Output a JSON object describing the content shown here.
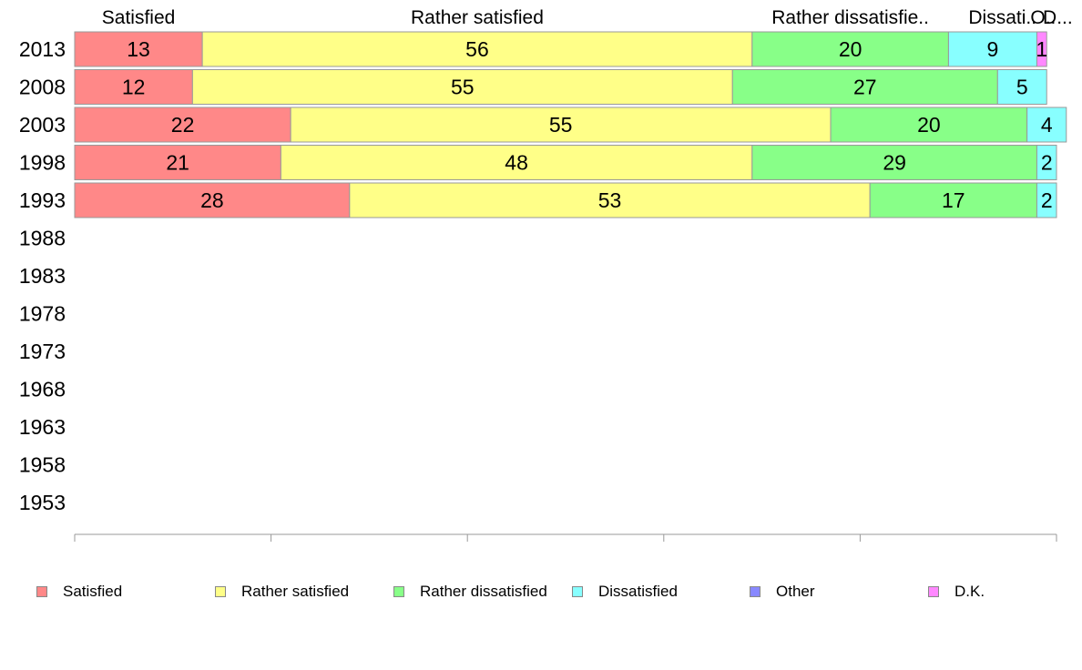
{
  "chart_data": {
    "type": "bar",
    "orientation": "horizontal",
    "stacked": true,
    "title": "",
    "xlabel": "",
    "ylabel": "",
    "xlim": [
      0,
      100
    ],
    "x_ticks": [
      0,
      20,
      40,
      60,
      80,
      100
    ],
    "categories": [
      "2013",
      "2008",
      "2003",
      "1998",
      "1993",
      "1988",
      "1983",
      "1978",
      "1973",
      "1968",
      "1963",
      "1958",
      "1953"
    ],
    "series": [
      {
        "name": "Satisfied",
        "color": "#ff8888",
        "values": [
          13,
          12,
          22,
          21,
          28,
          null,
          null,
          null,
          null,
          null,
          null,
          null,
          null
        ]
      },
      {
        "name": "Rather satisfied",
        "color": "#ffff88",
        "values": [
          56,
          55,
          55,
          48,
          53,
          null,
          null,
          null,
          null,
          null,
          null,
          null,
          null
        ]
      },
      {
        "name": "Rather dissatisfied",
        "color": "#88ff88",
        "values": [
          20,
          27,
          20,
          29,
          17,
          null,
          null,
          null,
          null,
          null,
          null,
          null,
          null
        ]
      },
      {
        "name": "Dissatisfied",
        "color": "#88ffff",
        "values": [
          9,
          5,
          4,
          2,
          2,
          null,
          null,
          null,
          null,
          null,
          null,
          null,
          null
        ]
      },
      {
        "name": "Other",
        "color": "#8888ff",
        "values": [
          0,
          0,
          0,
          0,
          0,
          null,
          null,
          null,
          null,
          null,
          null,
          null,
          null
        ]
      },
      {
        "name": "D.K.",
        "color": "#ff88ff",
        "values": [
          1,
          0,
          0,
          0,
          0,
          null,
          null,
          null,
          null,
          null,
          null,
          null,
          null
        ]
      }
    ],
    "top_labels": [
      "Satisfied",
      "Rather satisfied",
      "Rather dissatisfie..",
      "Dissati..",
      "O..",
      "D..."
    ],
    "grid": false,
    "legend_position": "bottom"
  }
}
